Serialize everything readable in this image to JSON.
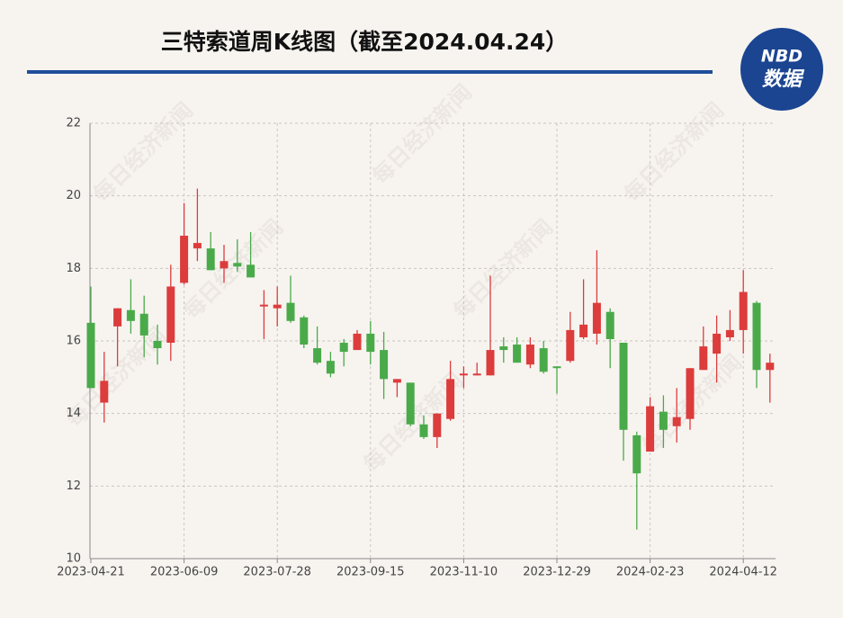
{
  "chart_data": {
    "type": "candlestick",
    "title": "三特索道周K线图（截至2024.04.24）",
    "logo": {
      "top": "NBD",
      "bottom": "数据"
    },
    "watermark": "每日经济新闻",
    "categories": [
      "2023-04-21",
      null,
      null,
      null,
      null,
      null,
      null,
      "2023-06-09",
      null,
      null,
      null,
      null,
      null,
      null,
      "2023-07-28",
      null,
      null,
      null,
      null,
      null,
      null,
      "2023-09-15",
      null,
      null,
      null,
      null,
      null,
      null,
      "2023-11-10",
      null,
      null,
      null,
      null,
      null,
      null,
      "2023-12-29",
      null,
      null,
      null,
      null,
      null,
      null,
      "2024-02-23",
      null,
      null,
      null,
      null,
      null,
      null,
      "2024-04-12",
      null,
      null
    ],
    "open": [
      16.5,
      14.3,
      16.4,
      16.85,
      16.75,
      16.0,
      15.95,
      17.6,
      18.55,
      18.55,
      18.0,
      18.15,
      18.1,
      16.95,
      16.9,
      17.05,
      16.65,
      15.8,
      15.45,
      15.95,
      15.75,
      16.2,
      15.75,
      14.85,
      14.85,
      13.7,
      13.35,
      13.85,
      15.05,
      15.05,
      15.05,
      15.85,
      15.9,
      15.35,
      15.8,
      15.3,
      15.45,
      16.1,
      16.2,
      16.8,
      15.95,
      13.4,
      12.95,
      14.05,
      13.65,
      13.85,
      15.2,
      15.65,
      16.1,
      16.3,
      17.05,
      15.2
    ],
    "high": [
      17.5,
      15.7,
      16.9,
      17.7,
      17.25,
      16.45,
      18.1,
      19.8,
      20.2,
      19.0,
      18.65,
      18.8,
      19.0,
      17.4,
      17.5,
      17.8,
      16.7,
      16.4,
      15.7,
      16.05,
      16.3,
      16.55,
      16.25,
      14.95,
      14.85,
      13.95,
      14.0,
      15.45,
      15.3,
      15.4,
      17.8,
      16.1,
      16.1,
      16.1,
      16.0,
      15.3,
      16.8,
      17.7,
      18.5,
      16.9,
      15.95,
      13.5,
      14.45,
      14.5,
      14.7,
      15.25,
      16.4,
      16.7,
      16.85,
      17.95,
      17.1,
      15.65
    ],
    "low": [
      14.7,
      13.75,
      15.3,
      16.2,
      15.55,
      15.35,
      15.45,
      17.55,
      18.2,
      17.95,
      17.6,
      17.9,
      17.75,
      16.05,
      16.4,
      16.5,
      15.8,
      15.35,
      15.0,
      15.3,
      15.75,
      15.35,
      14.4,
      14.45,
      13.65,
      13.3,
      13.05,
      13.8,
      14.7,
      15.05,
      15.05,
      15.4,
      15.4,
      15.25,
      15.1,
      14.55,
      15.4,
      16.05,
      15.9,
      15.25,
      12.7,
      10.8,
      12.95,
      13.05,
      13.2,
      13.55,
      15.2,
      14.85,
      16.0,
      15.65,
      14.7,
      14.3
    ],
    "close": [
      14.7,
      14.9,
      16.9,
      16.55,
      16.15,
      15.8,
      17.5,
      18.9,
      18.7,
      17.95,
      18.2,
      18.05,
      17.75,
      17.0,
      17.0,
      16.55,
      15.9,
      15.4,
      15.1,
      15.7,
      16.2,
      15.7,
      14.95,
      14.95,
      13.7,
      13.35,
      14.0,
      14.95,
      15.1,
      15.1,
      15.75,
      15.75,
      15.4,
      15.9,
      15.15,
      15.25,
      16.3,
      16.45,
      17.05,
      16.05,
      13.55,
      12.35,
      14.2,
      13.55,
      13.9,
      15.25,
      15.85,
      16.2,
      16.3,
      17.35,
      15.2,
      15.4
    ],
    "up_color": "#dc3c3c",
    "down_color": "#4aaa4a",
    "ylim": [
      10,
      22
    ],
    "yticks": [
      10,
      12,
      14,
      16,
      18,
      20,
      22
    ],
    "grid": true
  }
}
